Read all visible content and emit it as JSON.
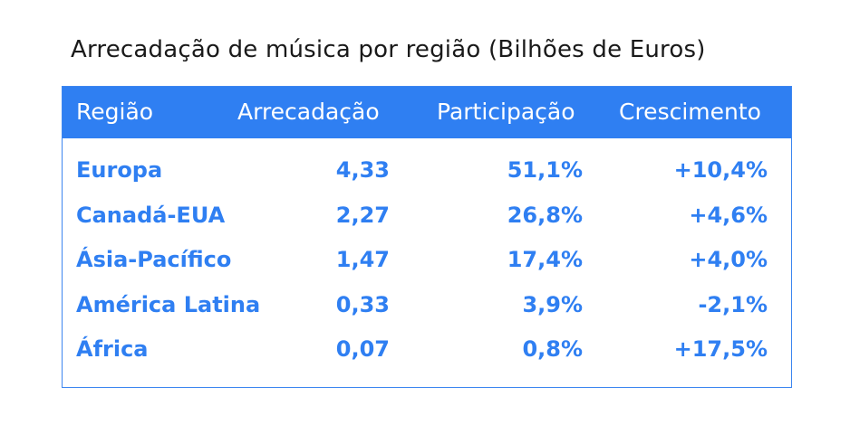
{
  "chart_data": {
    "type": "table",
    "title": "Arrecadação de música por região (Bilhões de Euros)",
    "columns": [
      "Região",
      "Arrecadação",
      "Participação",
      "Crescimento"
    ],
    "rows": [
      [
        "Europa",
        "4,33",
        "51,1%",
        "+10,4%"
      ],
      [
        "Canadá-EUA",
        "2,27",
        "26,8%",
        "+4,6%"
      ],
      [
        "Ásia-Pacífico",
        "1,47",
        "17,4%",
        "+4,0%"
      ],
      [
        "América Latina",
        "0,33",
        "3,9%",
        "-2,1%"
      ],
      [
        "África",
        "0,07",
        "0,8%",
        "+17,5%"
      ]
    ]
  },
  "colors": {
    "header_background": "#2f7ff2",
    "header_text": "#ffffff",
    "cell_text": "#2f7ff2",
    "border": "#3d86f0",
    "title_text": "#1a1a1a"
  }
}
